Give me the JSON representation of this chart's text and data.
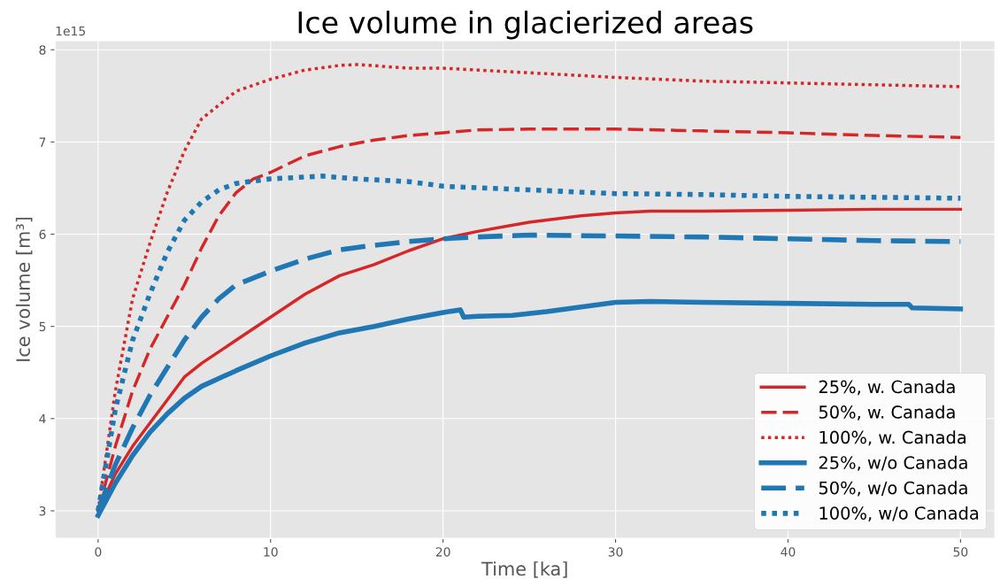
{
  "chart_data": {
    "type": "line",
    "title": "Ice volume in glacierized areas",
    "xlabel": "Time [ka]",
    "ylabel": "Ice volume [m³]",
    "annotations": [
      "1e15"
    ],
    "xlim": [
      -2.5,
      52
    ],
    "ylim": [
      2.7,
      8.1
    ],
    "xticks": [
      0,
      10,
      20,
      30,
      40,
      50
    ],
    "yticks": [
      3,
      4,
      5,
      6,
      7,
      8
    ],
    "grid": true,
    "legend": "bottom right",
    "marker": "none",
    "series": [
      {
        "name": "25%, w. Canada",
        "color": "#d62728",
        "line_style": "solid",
        "x": [
          0,
          1,
          2,
          3,
          4,
          5,
          6,
          8,
          10,
          12,
          14,
          16,
          18,
          20,
          22,
          25,
          28,
          30,
          32,
          35,
          40,
          45,
          50
        ],
        "values": [
          3.0,
          3.4,
          3.7,
          3.95,
          4.2,
          4.45,
          4.6,
          4.85,
          5.1,
          5.35,
          5.55,
          5.67,
          5.82,
          5.95,
          6.03,
          6.13,
          6.2,
          6.23,
          6.25,
          6.25,
          6.26,
          6.27,
          6.27
        ]
      },
      {
        "name": "50%, w. Canada",
        "color": "#d62728",
        "line_style": "dashed",
        "x": [
          0,
          1,
          2,
          3,
          4,
          5,
          6,
          7,
          8,
          9,
          10,
          12,
          14,
          16,
          18,
          20,
          22,
          25,
          30,
          35,
          40,
          45,
          50
        ],
        "values": [
          3.0,
          3.7,
          4.3,
          4.75,
          5.1,
          5.45,
          5.85,
          6.2,
          6.45,
          6.6,
          6.67,
          6.85,
          6.95,
          7.02,
          7.07,
          7.1,
          7.13,
          7.14,
          7.14,
          7.12,
          7.1,
          7.07,
          7.05
        ]
      },
      {
        "name": "100%, w. Canada",
        "color": "#d62728",
        "line_style": "dotted",
        "x": [
          0,
          1,
          2,
          3,
          4,
          5,
          6,
          7,
          8,
          10,
          12,
          14,
          15,
          18,
          20,
          25,
          30,
          35,
          40,
          45,
          50
        ],
        "values": [
          3.0,
          4.3,
          5.3,
          5.9,
          6.45,
          6.9,
          7.25,
          7.4,
          7.55,
          7.68,
          7.78,
          7.83,
          7.84,
          7.8,
          7.8,
          7.75,
          7.7,
          7.66,
          7.64,
          7.62,
          7.6
        ]
      },
      {
        "name": "25%, w/o Canada",
        "color": "#1f77b4",
        "line_style": "solid",
        "x": [
          0,
          1,
          2,
          3,
          4,
          5,
          6,
          8,
          10,
          12,
          14,
          16,
          18,
          20,
          21,
          21.2,
          22,
          24,
          26,
          28,
          30,
          32,
          35,
          40,
          45,
          47,
          47.2,
          50
        ],
        "values": [
          2.95,
          3.3,
          3.6,
          3.85,
          4.05,
          4.22,
          4.35,
          4.52,
          4.68,
          4.82,
          4.93,
          5.0,
          5.08,
          5.15,
          5.18,
          5.1,
          5.11,
          5.12,
          5.16,
          5.21,
          5.26,
          5.27,
          5.26,
          5.25,
          5.24,
          5.24,
          5.2,
          5.19
        ]
      },
      {
        "name": "50%, w/o Canada",
        "color": "#1f77b4",
        "line_style": "dashed",
        "x": [
          0,
          1,
          2,
          3,
          4,
          5,
          6,
          7,
          8,
          10,
          12,
          14,
          16,
          18,
          20,
          22,
          25,
          30,
          35,
          40,
          45,
          50
        ],
        "values": [
          3.0,
          3.5,
          3.9,
          4.25,
          4.55,
          4.85,
          5.1,
          5.3,
          5.45,
          5.6,
          5.73,
          5.83,
          5.88,
          5.92,
          5.95,
          5.97,
          5.99,
          5.98,
          5.97,
          5.95,
          5.93,
          5.92
        ]
      },
      {
        "name": "100%, w/o Canada",
        "color": "#1f77b4",
        "line_style": "dotted",
        "x": [
          0,
          1,
          2,
          3,
          4,
          5,
          6,
          7,
          8,
          10,
          12,
          13,
          15,
          18,
          20,
          25,
          30,
          35,
          40,
          45,
          50
        ],
        "values": [
          3.0,
          4.1,
          4.85,
          5.35,
          5.8,
          6.15,
          6.35,
          6.48,
          6.55,
          6.6,
          6.62,
          6.63,
          6.6,
          6.57,
          6.52,
          6.48,
          6.44,
          6.43,
          6.41,
          6.4,
          6.39
        ]
      }
    ]
  }
}
